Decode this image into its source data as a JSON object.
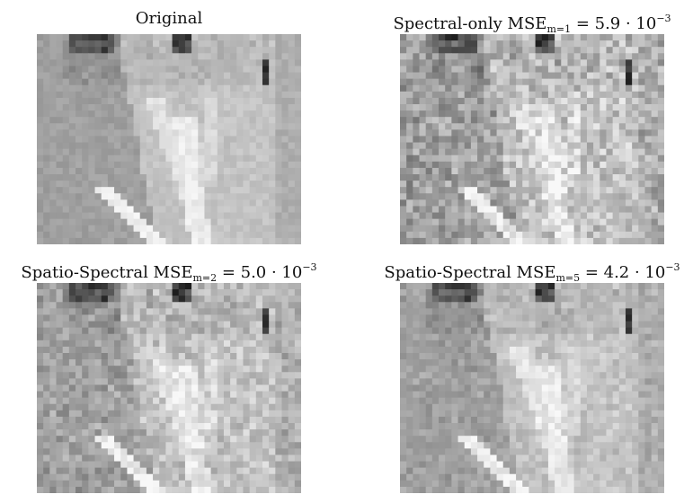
{
  "panels": [
    {
      "id": "original",
      "label": "Original",
      "sub": "",
      "mid": "",
      "sup": ""
    },
    {
      "id": "spectral-only",
      "label": "Spectral-only MSE",
      "sub": "m=1",
      "mid": " = 5.9 · 10",
      "sup": "−3"
    },
    {
      "id": "spatio-spectral-m2",
      "label": "Spatio-Spectral MSE",
      "sub": "m=2",
      "mid": " = 5.0 · 10",
      "sup": "−3"
    },
    {
      "id": "spatio-spectral-m5",
      "label": "Spatio-Spectral MSE",
      "sub": "m=5",
      "mid": " = 4.2 · 10",
      "sup": "−3"
    }
  ]
}
